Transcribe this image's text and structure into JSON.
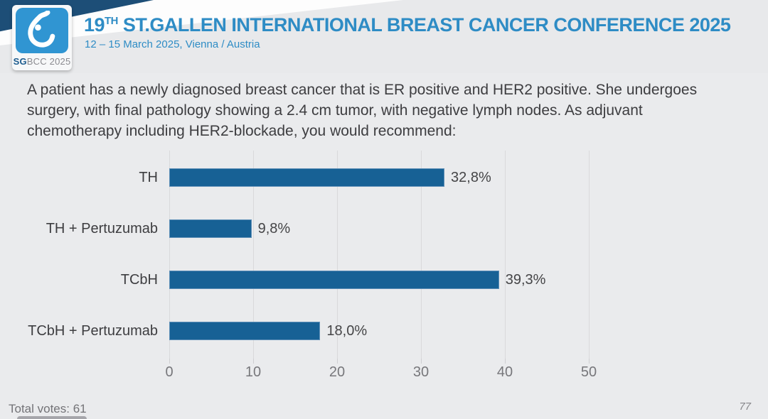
{
  "header": {
    "logo": {
      "text_bold": "SG",
      "text_rest": "BCC 2025"
    },
    "title_prefix": "19",
    "title_sup": "TH",
    "title_rest": " ST.GALLEN INTERNATIONAL BREAST CANCER CONFERENCE 2025",
    "subtitle": "12 – 15 March 2025, Vienna / Austria"
  },
  "question_lines": [
    "A patient has a newly diagnosed breast cancer that is ER positive and HER2 positive.  She undergoes",
    "surgery, with final pathology showing a 2.4 cm tumor, with negative lymph nodes. As adjuvant",
    "chemotherapy including HER2-blockade, you would recommend:"
  ],
  "chart_data": {
    "type": "bar",
    "orientation": "horizontal",
    "categories": [
      "TH",
      "TH + Pertuzumab",
      "TCbH",
      "TCbH + Pertuzumab"
    ],
    "values": [
      32.8,
      9.8,
      39.3,
      18.0
    ],
    "value_labels": [
      "32,8%",
      "9,8%",
      "39,3%",
      "18,0%"
    ],
    "x_ticks": [
      0,
      10,
      20,
      30,
      40,
      50
    ],
    "xlim": [
      0,
      50
    ],
    "grid": true,
    "legend": "none",
    "bar_color": "#176195",
    "bar_border_color": "#5e8fb7"
  },
  "footer": {
    "total_votes": "Total votes: 61",
    "page_number": "77"
  },
  "colors": {
    "background": "#eaebed",
    "title_blue": "#2e8cc5",
    "navy_accent": "#1d4e77",
    "logo_blue": "#3095d2"
  }
}
